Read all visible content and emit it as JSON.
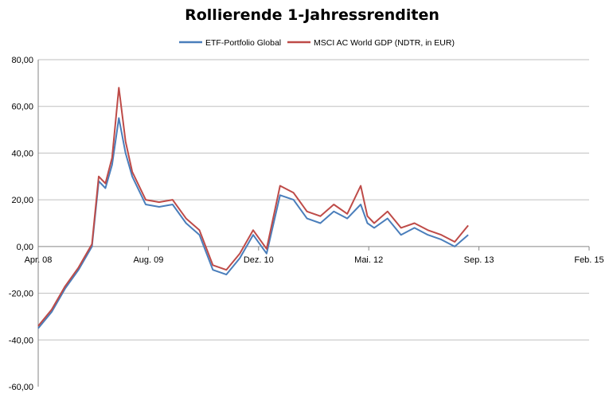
{
  "chart_data": {
    "type": "line",
    "title": "Rollierende 1-Jahressrenditen",
    "xlabel": "",
    "ylabel": "",
    "x_tick_labels": [
      "Apr. 08",
      "Aug. 09",
      "Dez. 10",
      "Mai. 12",
      "Sep. 13",
      "Feb. 15"
    ],
    "y_tick_labels": [
      "80,00",
      "60,00",
      "40,00",
      "20,00",
      "0,00",
      "-20,00",
      "-40,00",
      "-60,00"
    ],
    "y_tick_values": [
      80,
      60,
      40,
      20,
      0,
      -20,
      -40,
      -60
    ],
    "xlim": [
      "2008-04",
      "2015-02"
    ],
    "ylim": [
      -60,
      80
    ],
    "grid": "horizontal",
    "legend_position": "top-center",
    "x": [
      "2008-04",
      "2008-06",
      "2008-08",
      "2008-10",
      "2008-12",
      "2009-01",
      "2009-02",
      "2009-03",
      "2009-04",
      "2009-05",
      "2009-06",
      "2009-08",
      "2009-10",
      "2009-12",
      "2010-02",
      "2010-04",
      "2010-06",
      "2010-08",
      "2010-10",
      "2010-12",
      "2011-02",
      "2011-04",
      "2011-06",
      "2011-08",
      "2011-10",
      "2011-12",
      "2012-02",
      "2012-04",
      "2012-05",
      "2012-06",
      "2012-08",
      "2012-10",
      "2012-12",
      "2013-02",
      "2013-04",
      "2013-06",
      "2013-08"
    ],
    "series": [
      {
        "name": "ETF-Portfolio Global",
        "color": "#4a7ebb",
        "values": [
          -35,
          -28,
          -18,
          -10,
          0,
          28,
          25,
          35,
          55,
          40,
          30,
          18,
          17,
          18,
          10,
          5,
          -10,
          -12,
          -5,
          5,
          -3,
          22,
          20,
          12,
          10,
          15,
          12,
          18,
          10,
          8,
          12,
          5,
          8,
          5,
          3,
          0,
          5
        ]
      },
      {
        "name": "MSCI AC World GDP (NDTR,  in EUR)",
        "color": "#be4b48",
        "values": [
          -34,
          -27,
          -17,
          -9,
          1,
          30,
          27,
          38,
          68,
          45,
          32,
          20,
          19,
          20,
          12,
          7,
          -8,
          -10,
          -3,
          7,
          -1,
          26,
          23,
          15,
          13,
          18,
          14,
          26,
          13,
          10,
          15,
          8,
          10,
          7,
          5,
          2,
          9
        ]
      }
    ]
  }
}
